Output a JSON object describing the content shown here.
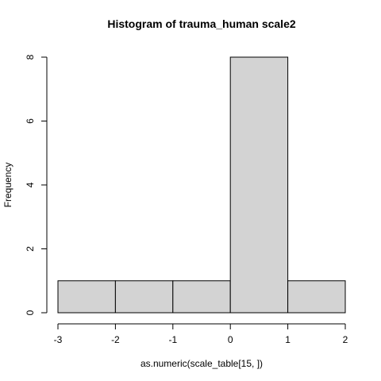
{
  "chart_data": {
    "type": "bar",
    "title": "Histogram of  trauma_human scale2",
    "xlabel": "as.numeric(scale_table[15, ])",
    "ylabel": "Frequency",
    "bins": [
      {
        "from": -3,
        "to": -2,
        "count": 1
      },
      {
        "from": -2,
        "to": -1,
        "count": 1
      },
      {
        "from": -1,
        "to": 0,
        "count": 1
      },
      {
        "from": 0,
        "to": 1,
        "count": 8
      },
      {
        "from": 1,
        "to": 2,
        "count": 1
      }
    ],
    "xlim": [
      -3,
      2
    ],
    "ylim": [
      0,
      8
    ],
    "x_ticks": [
      "-3",
      "-2",
      "-1",
      "0",
      "1",
      "2"
    ],
    "y_ticks": [
      "0",
      "2",
      "4",
      "6",
      "8"
    ],
    "bar_color": "#d3d3d3",
    "grid": false,
    "legend": "none"
  }
}
